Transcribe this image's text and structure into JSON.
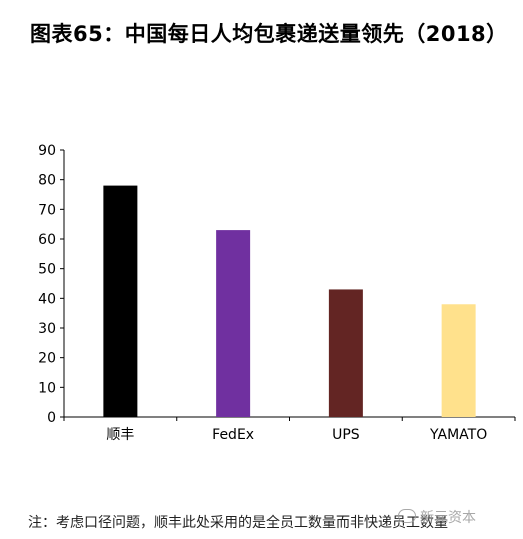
{
  "title": "图表65：中国每日人均包裹递送量领先（2018）",
  "note": "注：考虑口径问题，顺丰此处采用的是全员工数量而非快递员工数量",
  "watermark": "新元资本",
  "chart_data": {
    "type": "bar",
    "categories": [
      "顺丰",
      "FedEx",
      "UPS",
      "YAMATO"
    ],
    "values": [
      78,
      63,
      43,
      38
    ],
    "colors": [
      "#000000",
      "#7030A0",
      "#632523",
      "#FFE18C"
    ],
    "ylim": [
      0,
      90
    ],
    "yticks": [
      0,
      10,
      20,
      30,
      40,
      50,
      60,
      70,
      80,
      90
    ],
    "grid": false,
    "xlabel": "",
    "ylabel": ""
  }
}
